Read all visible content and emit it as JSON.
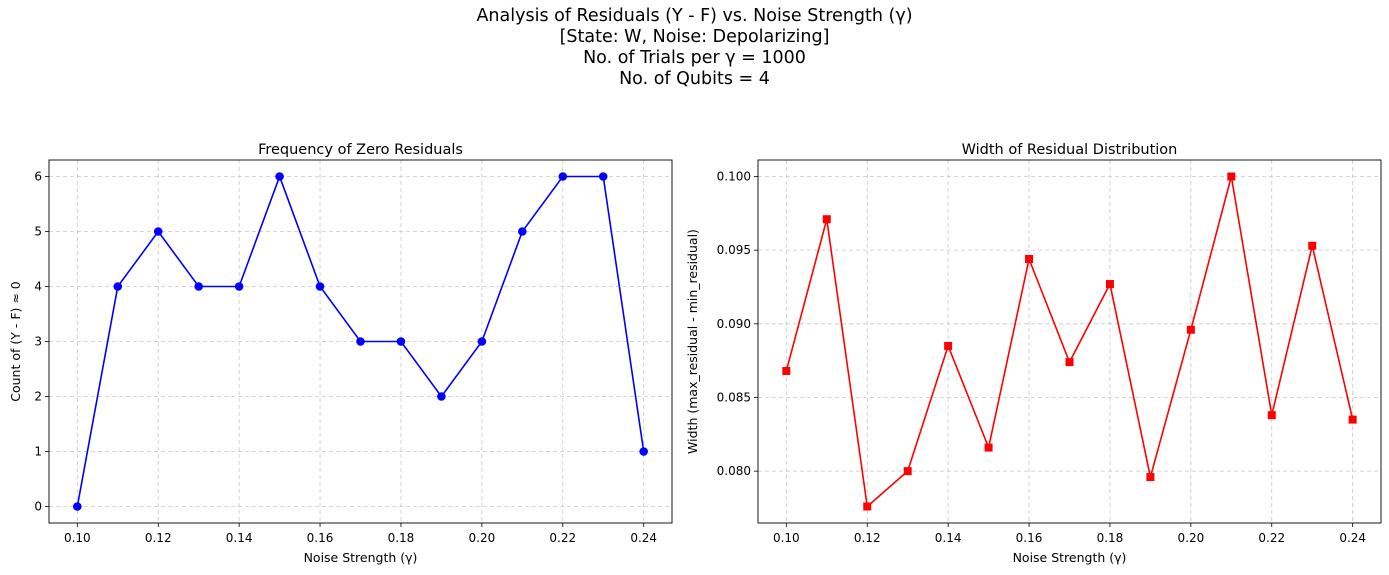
{
  "suptitle": {
    "line1": "Analysis of Residuals (Y - F) vs. Noise Strength (γ)",
    "line2": "[State: W, Noise: Depolarizing]",
    "line3": "No. of Trials per γ = 1000",
    "line4": "No. of Qubits = 4"
  },
  "chart_data": [
    {
      "type": "line",
      "title": "Frequency of Zero Residuals",
      "xlabel": "Noise Strength (γ)",
      "ylabel": "Count of (Y - F) ≈ 0",
      "x": [
        0.1,
        0.11,
        0.12,
        0.13,
        0.14,
        0.15,
        0.16,
        0.17,
        0.18,
        0.19,
        0.2,
        0.21,
        0.22,
        0.23,
        0.24
      ],
      "series": [
        {
          "values": [
            0,
            4,
            5,
            4,
            4,
            6,
            4,
            3,
            3,
            2,
            3,
            5,
            6,
            6,
            1
          ],
          "color": "#0000ff",
          "marker": "circle"
        }
      ],
      "xlim": [
        0.093,
        0.247
      ],
      "ylim": [
        -0.3,
        6.3
      ],
      "xticks": [
        "0.10",
        "0.12",
        "0.14",
        "0.16",
        "0.18",
        "0.20",
        "0.22",
        "0.24"
      ],
      "yticks": [
        "0",
        "1",
        "2",
        "3",
        "4",
        "5",
        "6"
      ],
      "grid": true
    },
    {
      "type": "line",
      "title": "Width of Residual Distribution",
      "xlabel": "Noise Strength (γ)",
      "ylabel": "Width (max_residual - min_residual)",
      "x": [
        0.1,
        0.11,
        0.12,
        0.13,
        0.14,
        0.15,
        0.16,
        0.17,
        0.18,
        0.19,
        0.2,
        0.21,
        0.22,
        0.23,
        0.24
      ],
      "series": [
        {
          "values": [
            0.0868,
            0.0971,
            0.0776,
            0.08,
            0.0885,
            0.0816,
            0.0944,
            0.0874,
            0.0927,
            0.0796,
            0.0896,
            0.1,
            0.0838,
            0.0953,
            0.0835
          ],
          "color": "#ff0000",
          "marker": "square"
        }
      ],
      "xlim": [
        0.093,
        0.247
      ],
      "ylim": [
        0.07648,
        0.10112
      ],
      "xticks": [
        "0.10",
        "0.12",
        "0.14",
        "0.16",
        "0.18",
        "0.20",
        "0.22",
        "0.24"
      ],
      "yticks": [
        "0.080",
        "0.085",
        "0.090",
        "0.095",
        "0.100"
      ],
      "grid": true
    }
  ]
}
